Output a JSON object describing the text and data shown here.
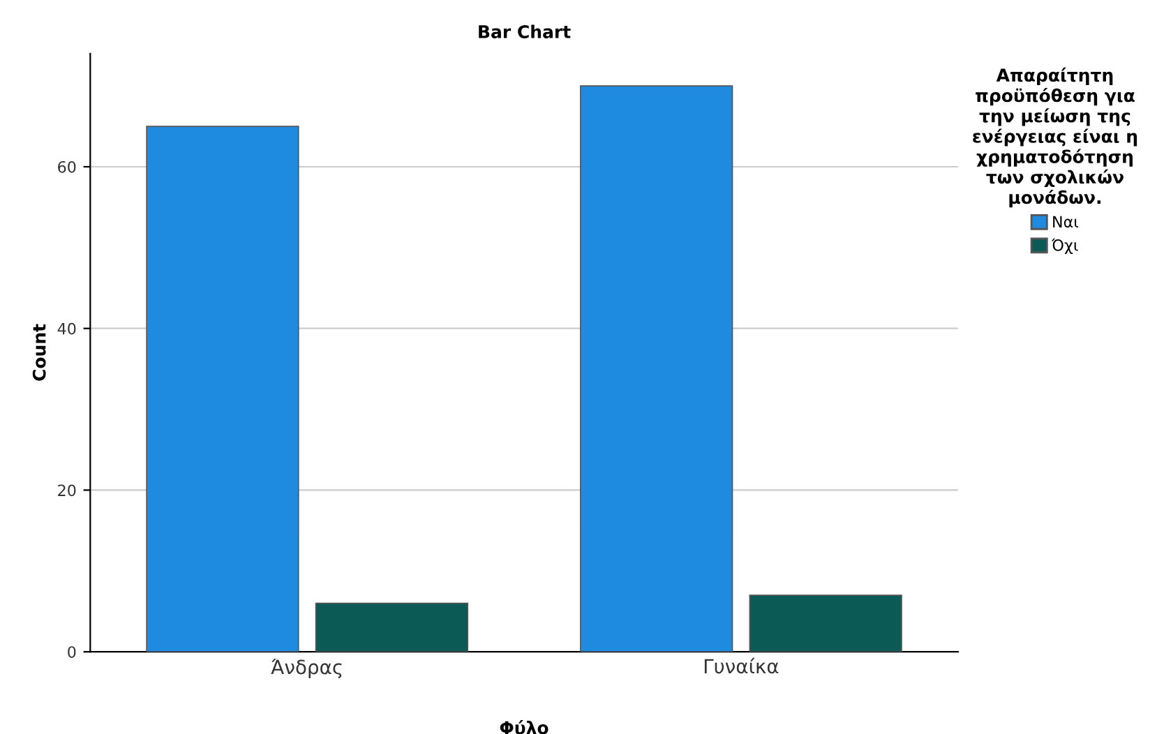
{
  "chart_data": {
    "type": "bar",
    "title": "Bar Chart",
    "xlabel": "Φύλο",
    "ylabel": "Count",
    "legend_title": "Απαραίτητη\nπροϋπόθεση για\nτην μείωση της\nενέργειας είναι η\nχρηματοδότηση\nτων σχολικών\nμονάδων.",
    "categories": [
      "Άνδρας",
      "Γυναίκα"
    ],
    "series": [
      {
        "name": "Ναι",
        "color": "#1f8be0",
        "values": [
          65,
          70
        ]
      },
      {
        "name": "Όχι",
        "color": "#0b5a55",
        "values": [
          6,
          7
        ]
      }
    ],
    "ylim": [
      0,
      74
    ],
    "yticks": [
      0,
      20,
      40,
      60
    ],
    "grid": "y",
    "legend": "top right"
  }
}
